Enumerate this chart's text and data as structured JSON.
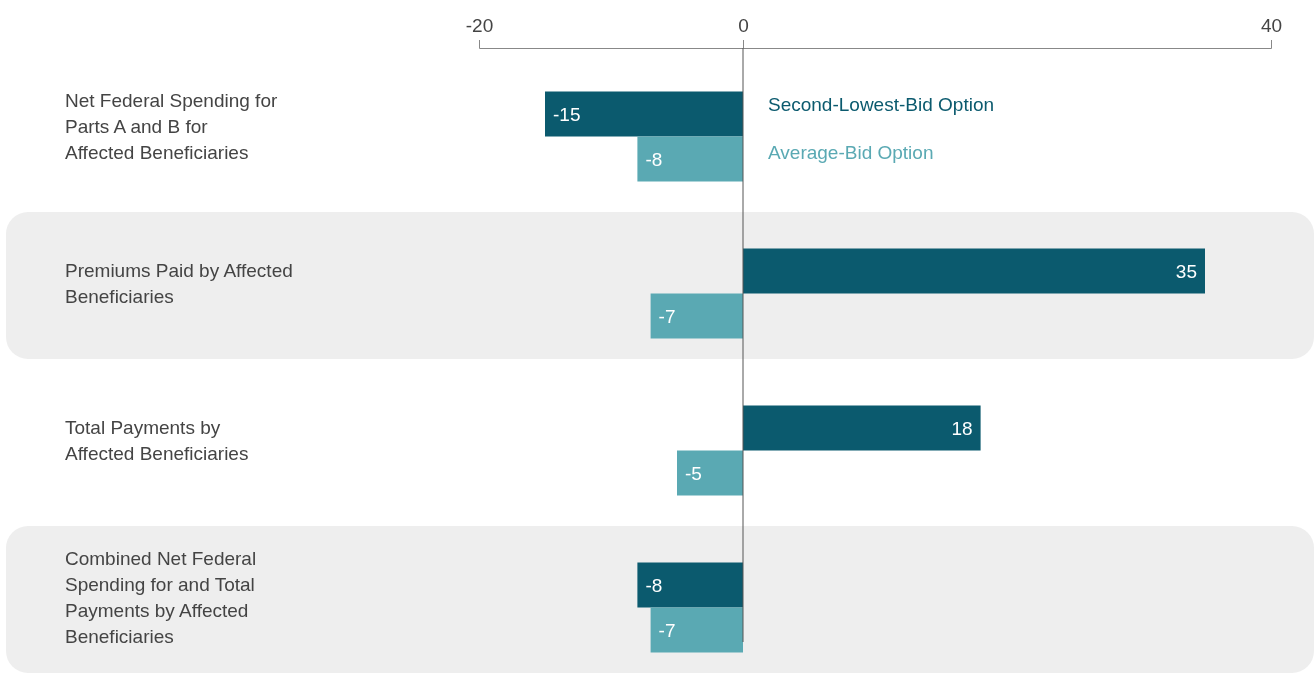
{
  "chart_data": {
    "type": "bar",
    "orientation": "horizontal",
    "categories": [
      "Net Federal Spending for Parts A and B for Affected Beneficiaries",
      "Premiums Paid by Affected Beneficiaries",
      "Total Payments by Affected Beneficiaries",
      "Combined Net Federal Spending for and Total Payments by Affected Beneficiaries"
    ],
    "series": [
      {
        "name": "Second-Lowest-Bid Option",
        "color": "#0b5a6e",
        "values": [
          -15,
          35,
          18,
          -8
        ]
      },
      {
        "name": "Average-Bid Option",
        "color": "#5aa9b3",
        "values": [
          -8,
          -7,
          -5,
          -7
        ]
      }
    ],
    "bands": [
      {
        "axis": "y",
        "from": "Premiums Paid by Affected Beneficiaries",
        "to": "Premiums Paid by Affected Beneficiaries",
        "color": "#eeeeee"
      },
      {
        "axis": "y",
        "from": "Combined Net Federal Spending for and Total Payments by Affected Beneficiaries",
        "to": "Combined Net Federal Spending for and Total Payments by Affected Beneficiaries",
        "color": "#eeeeee"
      }
    ],
    "xlim": [
      -20,
      40
    ],
    "x2lim": [
      -20,
      40
    ],
    "x2ticks": [
      -20,
      0,
      40
    ],
    "data_labels": true,
    "legend": "top",
    "grid": false
  }
}
